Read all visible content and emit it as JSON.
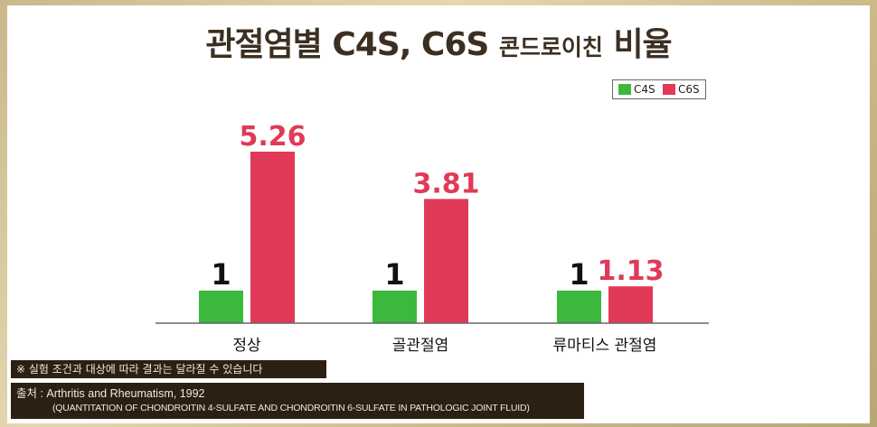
{
  "title": {
    "main": "관절염별 C4S, C6S",
    "suffix": "콘드로이친",
    "tail": "비율"
  },
  "legend": [
    {
      "label": "C4S",
      "color": "#3cb93c"
    },
    {
      "label": "C6S",
      "color": "#e03a58"
    }
  ],
  "chart_data": {
    "type": "bar",
    "categories": [
      "정상",
      "골관절염",
      "류마티스 관절염"
    ],
    "series": [
      {
        "name": "C4S",
        "values": [
          1,
          1,
          1
        ],
        "labels": [
          "1",
          "1",
          "1"
        ],
        "color": "#3cb93c"
      },
      {
        "name": "C6S",
        "values": [
          5.26,
          3.81,
          1.13
        ],
        "labels": [
          "5.26",
          "3.81",
          "1.13"
        ],
        "color": "#e03a58"
      }
    ],
    "grid": false,
    "legend_position": "top-right"
  },
  "note": "※ 실험 조건과 대상에 따라 결과는 달라질 수 있습니다",
  "source": {
    "line1": "출처 : Arthritis and Rheumatism, 1992",
    "line2": "(QUANTITATION OF CHONDROITIN 4-SULFATE AND CHONDROITIN 6-SULFATE IN PATHOLOGIC JOINT FLUID)"
  }
}
